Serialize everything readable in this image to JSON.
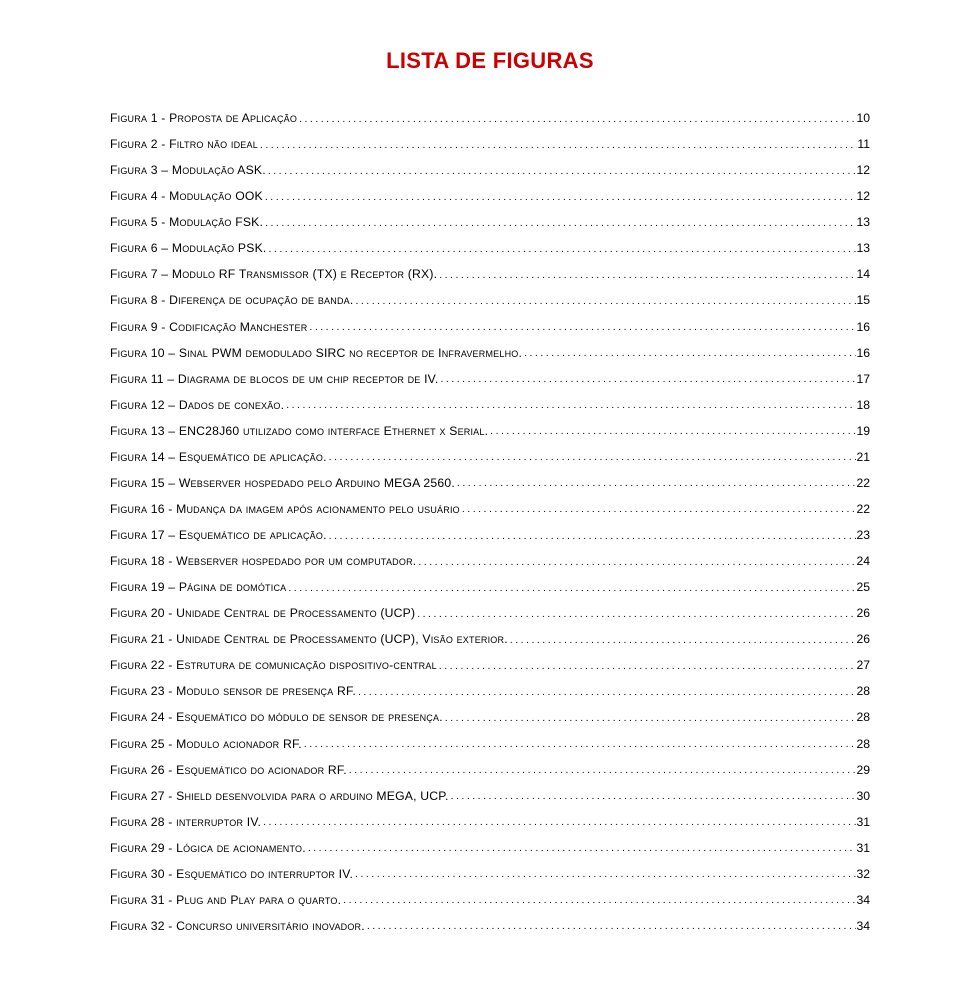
{
  "title": "LISTA DE FIGURAS",
  "title_color": "#cc0000",
  "text_color": "#000000",
  "background_color": "#ffffff",
  "font_family": "Arial",
  "title_fontsize": 22,
  "row_fontsize": 12.2,
  "entries": [
    {
      "label": "Figura 1 - Proposta de Aplicação",
      "page": "10"
    },
    {
      "label": "Figura 2 - Filtro não ideal",
      "page": "11"
    },
    {
      "label": "Figura 3 – Modulação ASK.",
      "page": "12"
    },
    {
      "label": "Figura 4 - Modulação OOK",
      "page": "12"
    },
    {
      "label": "Figura 5 - Modulação FSK.",
      "page": "13"
    },
    {
      "label": "Figura 6 – Modulação PSK.",
      "page": "13"
    },
    {
      "label": "Figura 7 – Modulo RF Transmissor (TX) e Receptor (RX).",
      "page": "14"
    },
    {
      "label": "Figura 8 - Diferença de ocupação de banda.",
      "page": "15"
    },
    {
      "label": "Figura 9 - Codificação Manchester",
      "page": "16"
    },
    {
      "label": "Figura 10 – Sinal PWM demodulado SIRC no receptor de Infravermelho.",
      "page": "16"
    },
    {
      "label": "Figura 11 – Diagrama de blocos de um chip receptor de IV.",
      "page": "17"
    },
    {
      "label": "Figura 12 – Dados de conexão.",
      "page": "18"
    },
    {
      "label": "Figura 13 – ENC28J60 utilizado como interface Ethernet x Serial.",
      "page": "19"
    },
    {
      "label": "Figura 14 – Esquemático de aplicação.",
      "page": "21"
    },
    {
      "label": "Figura 15 – Webserver hospedado pelo Arduino MEGA 2560.",
      "page": "22"
    },
    {
      "label": "Figura 16 - Mudança da imagem após acionamento pelo usuário",
      "page": "22"
    },
    {
      "label": "Figura 17 – Esquemático de aplicação.",
      "page": "23"
    },
    {
      "label": "Figura 18 - Webserver hospedado por um computador.",
      "page": "24"
    },
    {
      "label": "Figura 19 – Página de domótica",
      "page": "25"
    },
    {
      "label": "Figura 20 - Unidade Central de Processamento (UCP)",
      "page": "26"
    },
    {
      "label": "Figura 21 - Unidade Central de Processamento (UCP), Visão exterior.",
      "page": "26"
    },
    {
      "label": "Figura 22 - Estrutura de comunicação dispositivo-central",
      "page": "27"
    },
    {
      "label": "Figura 23 - Modulo sensor de presença RF.",
      "page": "28"
    },
    {
      "label": "Figura 24 - Esquemático do módulo de sensor de presença.",
      "page": "28"
    },
    {
      "label": "Figura 25 - Modulo acionador RF.",
      "page": "28"
    },
    {
      "label": "Figura 26 - Esquemático do acionador RF.",
      "page": "29"
    },
    {
      "label": "Figura 27 - Shield desenvolvida para o arduino MEGA, UCP.",
      "page": "30"
    },
    {
      "label": "Figura 28 - interruptor IV.",
      "page": "31"
    },
    {
      "label": "Figura 29 - Lógica de acionamento.",
      "page": "31"
    },
    {
      "label": "Figura 30 - Esquemático do interruptor IV.",
      "page": "32"
    },
    {
      "label": "Figura 31 - Plug and Play para o quarto.",
      "page": "34"
    },
    {
      "label": "Figura 32 - Concurso universitário inovador.",
      "page": "34"
    }
  ]
}
